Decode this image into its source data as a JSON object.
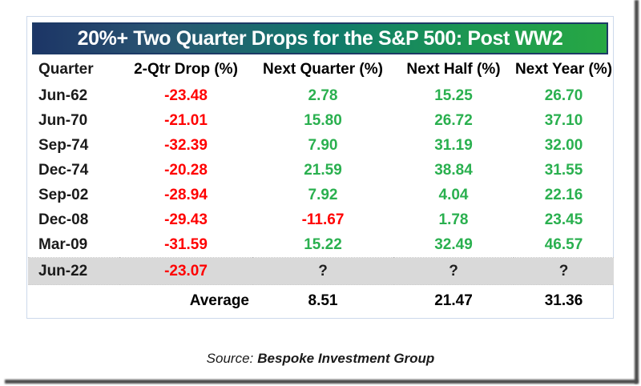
{
  "chart_data": {
    "type": "table",
    "title": "20%+ Two Quarter Drops for the S&P 500: Post WW2",
    "columns": [
      "Quarter",
      "2-Qtr Drop (%)",
      "Next Quarter (%)",
      "Next Half (%)",
      "Next Year (%)"
    ],
    "rows": [
      [
        "Jun-62",
        "-23.48",
        "2.78",
        "15.25",
        "26.70"
      ],
      [
        "Jun-70",
        "-21.01",
        "15.80",
        "26.72",
        "37.10"
      ],
      [
        "Sep-74",
        "-32.39",
        "7.90",
        "31.19",
        "32.00"
      ],
      [
        "Dec-74",
        "-20.28",
        "21.59",
        "38.84",
        "31.55"
      ],
      [
        "Sep-02",
        "-28.94",
        "7.92",
        "4.04",
        "22.16"
      ],
      [
        "Dec-08",
        "-29.43",
        "-11.67",
        "1.78",
        "23.45"
      ],
      [
        "Mar-09",
        "-31.59",
        "15.22",
        "32.49",
        "46.57"
      ],
      [
        "Jun-22",
        "-23.07",
        "?",
        "?",
        "?"
      ]
    ],
    "highlighted_row": "Jun-22",
    "average_row": [
      "",
      "Average",
      "8.51",
      "21.47",
      "31.36"
    ],
    "legend_position": "none",
    "grid": false
  },
  "source": {
    "prefix": "Source:",
    "name": "Bespoke Investment Group"
  },
  "colors": {
    "negative_value": "#ff0000",
    "positive_value": "#2ab04f",
    "unknown_value": "#1f1f1f",
    "highlight_row": "#d9d9d9",
    "title_gradient_left": "#1c3566",
    "title_gradient_mid": "#117a6b",
    "title_gradient_right": "#27a844",
    "title_border": "#1d3a66",
    "card_border": "#ccd9eb",
    "shadow_edge": "#4a4a4a"
  }
}
